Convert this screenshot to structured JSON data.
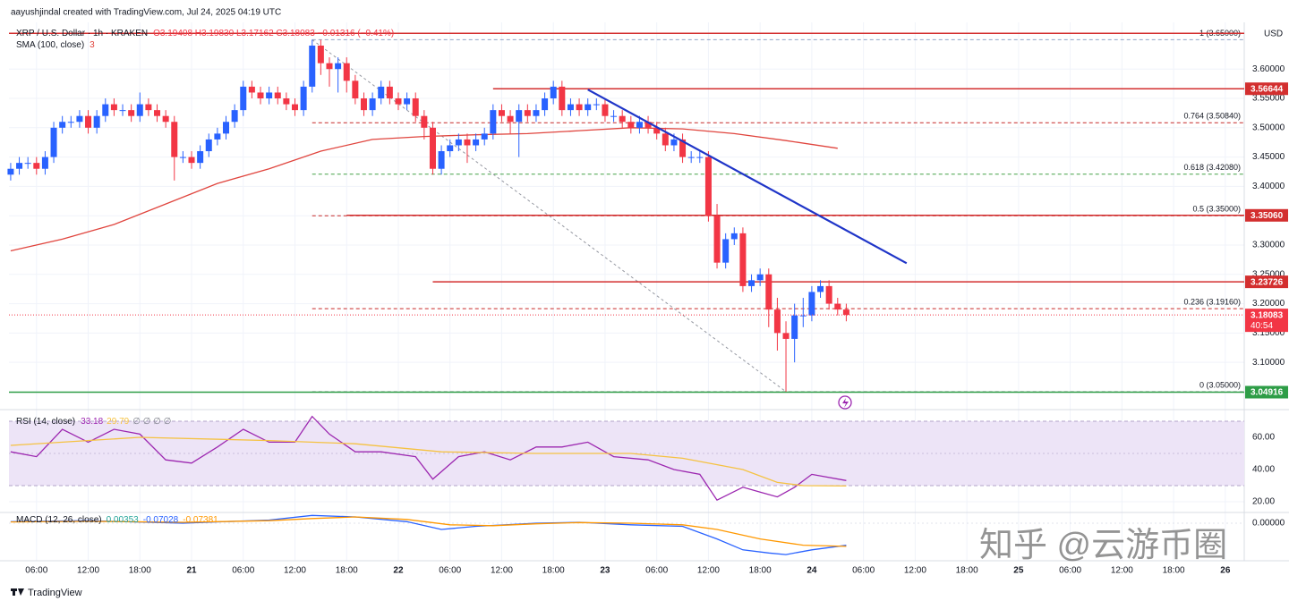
{
  "header": {
    "credit": "aayushjindal created with TradingView.com, Jul 24, 2025 04:19 UTC"
  },
  "watermark": "知乎 @云游币圈",
  "footer": {
    "brand": "TradingView"
  },
  "chart_data": [
    {
      "type": "candlestick",
      "title": "XRP / U.S. Dollar · 1h · KRAKEN",
      "quote": "O3.19408 H3.19830 L3.17162 C3.18083 −0.01316 (−0.41%)",
      "currency": "USD",
      "up_color": "#2962ff",
      "down_color": "#f23645",
      "xlim": [
        -3.2,
        140.2
      ],
      "xticks": [
        {
          "value": 0,
          "label": "06:00"
        },
        {
          "value": 6,
          "label": "12:00"
        },
        {
          "value": 12,
          "label": "18:00"
        },
        {
          "value": 18,
          "label": "21"
        },
        {
          "value": 24,
          "label": "06:00"
        },
        {
          "value": 30,
          "label": "12:00"
        },
        {
          "value": 36,
          "label": "18:00"
        },
        {
          "value": 42,
          "label": "22"
        },
        {
          "value": 48,
          "label": "06:00"
        },
        {
          "value": 54,
          "label": "12:00"
        },
        {
          "value": 60,
          "label": "18:00"
        },
        {
          "value": 66,
          "label": "23"
        },
        {
          "value": 72,
          "label": "06:00"
        },
        {
          "value": 78,
          "label": "12:00"
        },
        {
          "value": 84,
          "label": "18:00"
        },
        {
          "value": 90,
          "label": "24"
        },
        {
          "value": 96,
          "label": "06:00"
        },
        {
          "value": 102,
          "label": "12:00"
        },
        {
          "value": 108,
          "label": "18:00"
        },
        {
          "value": 114,
          "label": "25"
        },
        {
          "value": 120,
          "label": "06:00"
        },
        {
          "value": 126,
          "label": "12:00"
        },
        {
          "value": 132,
          "label": "18:00"
        },
        {
          "value": 138,
          "label": "26"
        }
      ],
      "ylim": [
        3.024,
        3.672
      ],
      "yticks": [
        {
          "value": 3.1,
          "label": "3.10000"
        },
        {
          "value": 3.15,
          "label": "3.15000"
        },
        {
          "value": 3.2,
          "label": "3.20000"
        },
        {
          "value": 3.25,
          "label": "3.25000"
        },
        {
          "value": 3.3,
          "label": "3.30000"
        },
        {
          "value": 3.35,
          "label": "3.35000"
        },
        {
          "value": 3.4,
          "label": "3.40000"
        },
        {
          "value": 3.45,
          "label": "3.45000"
        },
        {
          "value": 3.5,
          "label": "3.50000"
        },
        {
          "value": 3.55,
          "label": "3.55000"
        },
        {
          "value": 3.6,
          "label": "3.60000"
        }
      ],
      "grid": true,
      "x": [
        -3,
        -2,
        -1,
        0,
        1,
        2,
        3,
        4,
        5,
        6,
        7,
        8,
        9,
        10,
        11,
        12,
        13,
        14,
        15,
        16,
        17,
        18,
        19,
        20,
        21,
        22,
        23,
        24,
        25,
        26,
        27,
        28,
        29,
        30,
        31,
        32,
        33,
        34,
        35,
        36,
        37,
        38,
        39,
        40,
        41,
        42,
        43,
        44,
        45,
        46,
        47,
        48,
        49,
        50,
        51,
        52,
        53,
        54,
        55,
        56,
        57,
        58,
        59,
        60,
        61,
        62,
        63,
        64,
        65,
        66,
        67,
        68,
        69,
        70,
        71,
        72,
        73,
        74,
        75,
        76,
        77,
        78,
        79,
        80,
        81,
        82,
        83,
        84,
        85,
        86,
        87,
        88,
        89,
        90,
        91,
        92,
        93,
        94
      ],
      "ohlc": [
        [
          3.42,
          3.44,
          3.41,
          3.43
        ],
        [
          3.43,
          3.45,
          3.42,
          3.44
        ],
        [
          3.44,
          3.45,
          3.43,
          3.44
        ],
        [
          3.44,
          3.45,
          3.42,
          3.43
        ],
        [
          3.43,
          3.46,
          3.42,
          3.45
        ],
        [
          3.45,
          3.51,
          3.44,
          3.5
        ],
        [
          3.5,
          3.52,
          3.49,
          3.51
        ],
        [
          3.51,
          3.52,
          3.5,
          3.51
        ],
        [
          3.51,
          3.53,
          3.5,
          3.52
        ],
        [
          3.52,
          3.53,
          3.49,
          3.5
        ],
        [
          3.5,
          3.53,
          3.49,
          3.52
        ],
        [
          3.52,
          3.55,
          3.51,
          3.54
        ],
        [
          3.54,
          3.55,
          3.52,
          3.53
        ],
        [
          3.53,
          3.54,
          3.52,
          3.53
        ],
        [
          3.53,
          3.54,
          3.51,
          3.52
        ],
        [
          3.52,
          3.56,
          3.51,
          3.54
        ],
        [
          3.54,
          3.55,
          3.52,
          3.53
        ],
        [
          3.53,
          3.54,
          3.51,
          3.52
        ],
        [
          3.52,
          3.53,
          3.5,
          3.51
        ],
        [
          3.51,
          3.52,
          3.41,
          3.45
        ],
        [
          3.45,
          3.46,
          3.44,
          3.45
        ],
        [
          3.45,
          3.46,
          3.43,
          3.44
        ],
        [
          3.44,
          3.47,
          3.43,
          3.46
        ],
        [
          3.46,
          3.49,
          3.45,
          3.48
        ],
        [
          3.48,
          3.5,
          3.47,
          3.49
        ],
        [
          3.49,
          3.52,
          3.48,
          3.51
        ],
        [
          3.51,
          3.54,
          3.5,
          3.53
        ],
        [
          3.53,
          3.58,
          3.52,
          3.57
        ],
        [
          3.57,
          3.58,
          3.55,
          3.56
        ],
        [
          3.56,
          3.57,
          3.54,
          3.55
        ],
        [
          3.55,
          3.57,
          3.54,
          3.56
        ],
        [
          3.56,
          3.57,
          3.54,
          3.55
        ],
        [
          3.55,
          3.56,
          3.53,
          3.54
        ],
        [
          3.54,
          3.55,
          3.52,
          3.53
        ],
        [
          3.53,
          3.58,
          3.52,
          3.57
        ],
        [
          3.57,
          3.65,
          3.56,
          3.64
        ],
        [
          3.64,
          3.65,
          3.59,
          3.61
        ],
        [
          3.61,
          3.62,
          3.57,
          3.6
        ],
        [
          3.6,
          3.62,
          3.56,
          3.61
        ],
        [
          3.61,
          3.62,
          3.56,
          3.58
        ],
        [
          3.58,
          3.59,
          3.54,
          3.55
        ],
        [
          3.55,
          3.56,
          3.52,
          3.53
        ],
        [
          3.53,
          3.56,
          3.52,
          3.55
        ],
        [
          3.55,
          3.58,
          3.54,
          3.57
        ],
        [
          3.57,
          3.58,
          3.54,
          3.55
        ],
        [
          3.55,
          3.56,
          3.53,
          3.54
        ],
        [
          3.54,
          3.56,
          3.53,
          3.55
        ],
        [
          3.55,
          3.56,
          3.51,
          3.52
        ],
        [
          3.52,
          3.53,
          3.48,
          3.5
        ],
        [
          3.5,
          3.51,
          3.42,
          3.43
        ],
        [
          3.43,
          3.47,
          3.42,
          3.46
        ],
        [
          3.46,
          3.48,
          3.45,
          3.47
        ],
        [
          3.47,
          3.49,
          3.46,
          3.48
        ],
        [
          3.48,
          3.49,
          3.44,
          3.47
        ],
        [
          3.47,
          3.49,
          3.46,
          3.48
        ],
        [
          3.48,
          3.5,
          3.47,
          3.49
        ],
        [
          3.49,
          3.54,
          3.48,
          3.53
        ],
        [
          3.53,
          3.54,
          3.51,
          3.52
        ],
        [
          3.52,
          3.53,
          3.49,
          3.51
        ],
        [
          3.51,
          3.54,
          3.45,
          3.53
        ],
        [
          3.53,
          3.54,
          3.51,
          3.52
        ],
        [
          3.52,
          3.54,
          3.51,
          3.53
        ],
        [
          3.53,
          3.56,
          3.52,
          3.55
        ],
        [
          3.55,
          3.58,
          3.54,
          3.57
        ],
        [
          3.57,
          3.58,
          3.52,
          3.53
        ],
        [
          3.53,
          3.55,
          3.52,
          3.54
        ],
        [
          3.54,
          3.55,
          3.52,
          3.53
        ],
        [
          3.53,
          3.55,
          3.52,
          3.54
        ],
        [
          3.54,
          3.55,
          3.53,
          3.54
        ],
        [
          3.54,
          3.55,
          3.51,
          3.52
        ],
        [
          3.52,
          3.53,
          3.51,
          3.52
        ],
        [
          3.52,
          3.53,
          3.5,
          3.51
        ],
        [
          3.51,
          3.52,
          3.49,
          3.5
        ],
        [
          3.5,
          3.52,
          3.49,
          3.51
        ],
        [
          3.51,
          3.52,
          3.49,
          3.5
        ],
        [
          3.5,
          3.51,
          3.48,
          3.49
        ],
        [
          3.49,
          3.5,
          3.46,
          3.47
        ],
        [
          3.47,
          3.49,
          3.46,
          3.48
        ],
        [
          3.48,
          3.49,
          3.44,
          3.45
        ],
        [
          3.45,
          3.46,
          3.44,
          3.45
        ],
        [
          3.45,
          3.46,
          3.44,
          3.45
        ],
        [
          3.45,
          3.46,
          3.34,
          3.35
        ],
        [
          3.35,
          3.37,
          3.26,
          3.27
        ],
        [
          3.27,
          3.32,
          3.26,
          3.31
        ],
        [
          3.31,
          3.33,
          3.3,
          3.32
        ],
        [
          3.32,
          3.33,
          3.22,
          3.23
        ],
        [
          3.23,
          3.25,
          3.22,
          3.24
        ],
        [
          3.24,
          3.26,
          3.23,
          3.25
        ],
        [
          3.25,
          3.26,
          3.16,
          3.19
        ],
        [
          3.19,
          3.21,
          3.12,
          3.15
        ],
        [
          3.15,
          3.17,
          3.05,
          3.14
        ],
        [
          3.14,
          3.2,
          3.1,
          3.18
        ],
        [
          3.18,
          3.21,
          3.16,
          3.18
        ],
        [
          3.18,
          3.23,
          3.17,
          3.22
        ],
        [
          3.22,
          3.24,
          3.21,
          3.23
        ],
        [
          3.23,
          3.24,
          3.19,
          3.2
        ],
        [
          3.2,
          3.21,
          3.18,
          3.19
        ],
        [
          3.19,
          3.2,
          3.17,
          3.18083
        ]
      ],
      "series": [
        {
          "name": "SMA (100, close)",
          "readout": 3,
          "color": "#e0453e",
          "x": [
            -3,
            3,
            9,
            15,
            21,
            27,
            33,
            39,
            45,
            51,
            57,
            63,
            69,
            75,
            81,
            87,
            93
          ],
          "values": [
            3.29,
            3.31,
            3.335,
            3.37,
            3.405,
            3.43,
            3.46,
            3.48,
            3.485,
            3.488,
            3.49,
            3.495,
            3.5,
            3.498,
            3.49,
            3.478,
            3.465
          ]
        }
      ],
      "levels": [
        {
          "value": 3.661,
          "color": "#d32f2f"
        },
        {
          "value": 3.56644,
          "label": "3.56644",
          "color": "#d32f2f",
          "from": 53
        },
        {
          "value": 3.3506,
          "label": "3.35060",
          "color": "#d32f2f",
          "from": 36
        },
        {
          "value": 3.23726,
          "label": "3.23726",
          "color": "#d32f2f",
          "from": 46
        },
        {
          "value": 3.04916,
          "label": "3.04916",
          "color": "#2e9d47"
        }
      ],
      "fib": {
        "from": 32,
        "levels": [
          {
            "value": 3.65,
            "label": "1 (3.65000)",
            "color": "#90a4c8"
          },
          {
            "value": 3.5084,
            "label": "0.764 (3.50840)",
            "color": "#c62828"
          },
          {
            "value": 3.4208,
            "label": "0.618 (3.42080)",
            "color": "#43a047"
          },
          {
            "value": 3.35,
            "label": "0.5 (3.35000)",
            "color": "#c62828"
          },
          {
            "value": 3.1916,
            "label": "0.236 (3.19160)",
            "color": "#c62828"
          },
          {
            "value": 3.05,
            "label": "0 (3.05000)",
            "color": "#787b86"
          }
        ]
      },
      "fib_diagonal": {
        "color": "#9598a1",
        "x": [
          32,
          87
        ],
        "values": [
          3.65,
          3.05
        ]
      },
      "trendline": {
        "color": "#1f35c8",
        "x": [
          64,
          101
        ],
        "values": [
          3.565,
          3.269
        ]
      },
      "last_price": {
        "value": 3.18083,
        "label": "3.18083",
        "countdown": "40:54",
        "color": "#f23645"
      }
    },
    {
      "type": "line",
      "title": "RSI (14, close)",
      "readouts": [
        33.18,
        29.79
      ],
      "na": "∅ ∅ ∅ ∅",
      "ylim": [
        13.9,
        75
      ],
      "yticks": [
        {
          "value": 20,
          "label": "20.00"
        },
        {
          "value": 40,
          "label": "40.00"
        },
        {
          "value": 60,
          "label": "60.00"
        }
      ],
      "band": [
        30,
        70
      ],
      "midline": 50,
      "band_color": "#ede4f7",
      "series": [
        {
          "color": "#9c27b0",
          "x": [
            -3,
            0,
            3,
            6,
            9,
            12,
            15,
            18,
            21,
            24,
            27,
            30,
            32,
            34,
            37,
            40,
            44,
            46,
            49,
            52,
            55,
            58,
            61,
            64,
            67,
            71,
            74,
            77,
            79,
            82,
            84,
            86,
            88,
            90,
            94
          ],
          "values": [
            51,
            48,
            65,
            57,
            65,
            62,
            46,
            44,
            54,
            65,
            57,
            57,
            73,
            62,
            51,
            51,
            48,
            34,
            48,
            51,
            46,
            54,
            54,
            57,
            48,
            46,
            40,
            37,
            21,
            29,
            26,
            23,
            29,
            37,
            33.18
          ]
        },
        {
          "color": "#f5c242",
          "x": [
            -3,
            12,
            27,
            37,
            47,
            58,
            69,
            75,
            82,
            86,
            89,
            94
          ],
          "values": [
            55,
            60,
            58,
            56,
            51,
            50,
            50,
            47,
            40,
            32,
            30,
            29.79
          ]
        }
      ]
    },
    {
      "type": "line",
      "title": "MACD (12, 26, close)",
      "readouts": [
        0.00353,
        -0.07028,
        -0.07381
      ],
      "readout_colors": [
        "#26a69a",
        "#2962ff",
        "#ff9800"
      ],
      "ylim": [
        -0.114,
        0.0286
      ],
      "yticks": [
        {
          "value": 0,
          "label": "0.00000"
        }
      ],
      "series": [
        {
          "color": "#2962ff",
          "x": [
            -3,
            6,
            17,
            27,
            32,
            37,
            43,
            47,
            51,
            58,
            63,
            69,
            75,
            79,
            82,
            85,
            87,
            90,
            94
          ],
          "values": [
            0.005,
            0.008,
            0.0,
            0.01,
            0.025,
            0.02,
            0.005,
            -0.02,
            -0.01,
            0.0,
            0.003,
            -0.005,
            -0.01,
            -0.05,
            -0.085,
            -0.095,
            -0.1,
            -0.085,
            -0.07028
          ]
        },
        {
          "color": "#ff9800",
          "x": [
            -3,
            6,
            17,
            27,
            32,
            37,
            43,
            48,
            53,
            58,
            63,
            69,
            75,
            79,
            84,
            89,
            94
          ],
          "values": [
            0.004,
            0.006,
            0.003,
            0.008,
            0.015,
            0.02,
            0.012,
            -0.005,
            -0.008,
            -0.002,
            0.002,
            0.0,
            -0.005,
            -0.02,
            -0.05,
            -0.07,
            -0.07381
          ]
        }
      ]
    }
  ]
}
